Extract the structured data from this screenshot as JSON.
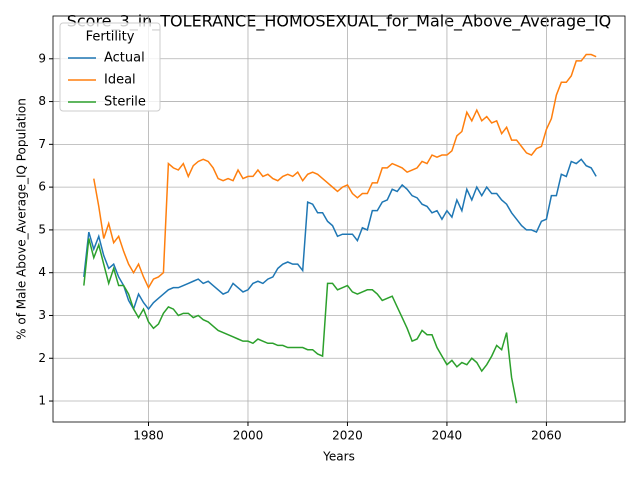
{
  "chart_data": {
    "type": "line",
    "title": "Score_3_in_TOLERANCE_HOMOSEXUAL_for_Male_Above_Average_IQ",
    "x_label": "Years",
    "y_label": "% of Male Above_Average_IQ Population",
    "legend_title": "Fertility",
    "legend_loc": "upper left",
    "grid": true,
    "x": [
      1967,
      1968,
      1969,
      1970,
      1971,
      1972,
      1973,
      1974,
      1975,
      1976,
      1977,
      1978,
      1979,
      1980,
      1981,
      1982,
      1983,
      1984,
      1985,
      1986,
      1987,
      1988,
      1989,
      1990,
      1991,
      1992,
      1993,
      1994,
      1995,
      1996,
      1997,
      1998,
      1999,
      2000,
      2001,
      2002,
      2003,
      2004,
      2005,
      2006,
      2007,
      2008,
      2009,
      2010,
      2011,
      2012,
      2013,
      2014,
      2015,
      2016,
      2017,
      2018,
      2019,
      2020,
      2021,
      2022,
      2023,
      2024,
      2025,
      2026,
      2027,
      2028,
      2029,
      2030,
      2031,
      2032,
      2033,
      2034,
      2035,
      2036,
      2037,
      2038,
      2039,
      2040,
      2041,
      2042,
      2043,
      2044,
      2045,
      2046,
      2047,
      2048,
      2049,
      2050,
      2051,
      2052,
      2053,
      2054,
      2055,
      2056,
      2057,
      2058,
      2059,
      2060,
      2061,
      2062,
      2063,
      2064,
      2065,
      2066,
      2067,
      2068,
      2069,
      2070
    ],
    "series": [
      {
        "name": "Actual",
        "color": "#1f77b4",
        "values": [
          3.9,
          4.95,
          4.55,
          4.85,
          4.4,
          4.1,
          4.2,
          3.9,
          3.7,
          3.35,
          3.15,
          3.5,
          3.3,
          3.15,
          3.3,
          3.4,
          3.5,
          3.6,
          3.65,
          3.65,
          3.7,
          3.75,
          3.8,
          3.85,
          3.75,
          3.8,
          3.7,
          3.6,
          3.5,
          3.55,
          3.75,
          3.65,
          3.55,
          3.6,
          3.75,
          3.8,
          3.75,
          3.85,
          3.9,
          4.1,
          4.2,
          4.25,
          4.2,
          4.2,
          4.05,
          5.65,
          5.6,
          5.4,
          5.4,
          5.2,
          5.1,
          4.85,
          4.9,
          4.9,
          4.9,
          4.75,
          5.05,
          5.0,
          5.45,
          5.45,
          5.65,
          5.7,
          5.95,
          5.9,
          6.05,
          5.95,
          5.8,
          5.75,
          5.6,
          5.55,
          5.4,
          5.45,
          5.25,
          5.45,
          5.3,
          5.7,
          5.45,
          5.95,
          5.7,
          6.0,
          5.8,
          6.0,
          5.85,
          5.85,
          5.7,
          5.6,
          5.4,
          5.25,
          5.1,
          5.0,
          5.0,
          4.95,
          5.2,
          5.25,
          5.8,
          5.8,
          6.3,
          6.25,
          6.6,
          6.55,
          6.65,
          6.5,
          6.45,
          6.25
        ]
      },
      {
        "name": "Ideal",
        "color": "#ff7f0e",
        "values": [
          null,
          null,
          6.2,
          5.55,
          4.8,
          5.15,
          4.7,
          4.85,
          4.5,
          4.2,
          4.0,
          4.2,
          3.9,
          3.65,
          3.85,
          3.9,
          4.0,
          6.55,
          6.45,
          6.4,
          6.55,
          6.25,
          6.5,
          6.6,
          6.65,
          6.6,
          6.45,
          6.2,
          6.15,
          6.2,
          6.15,
          6.4,
          6.2,
          6.25,
          6.25,
          6.4,
          6.25,
          6.3,
          6.2,
          6.15,
          6.25,
          6.3,
          6.25,
          6.35,
          6.15,
          6.3,
          6.35,
          6.3,
          6.2,
          6.1,
          6.0,
          5.9,
          6.0,
          6.05,
          5.85,
          5.75,
          5.85,
          5.85,
          6.1,
          6.1,
          6.45,
          6.45,
          6.55,
          6.5,
          6.45,
          6.35,
          6.4,
          6.45,
          6.6,
          6.55,
          6.75,
          6.7,
          6.75,
          6.75,
          6.85,
          7.2,
          7.3,
          7.75,
          7.55,
          7.8,
          7.55,
          7.65,
          7.5,
          7.55,
          7.25,
          7.4,
          7.1,
          7.1,
          6.95,
          6.8,
          6.75,
          6.9,
          6.95,
          7.35,
          7.6,
          8.15,
          8.45,
          8.45,
          8.6,
          8.95,
          8.95,
          9.1,
          9.1,
          9.05
        ]
      },
      {
        "name": "Sterile",
        "color": "#2ca02c",
        "values": [
          3.7,
          4.8,
          4.35,
          4.65,
          4.2,
          3.75,
          4.1,
          3.7,
          3.7,
          3.5,
          3.15,
          2.95,
          3.15,
          2.85,
          2.7,
          2.8,
          3.05,
          3.2,
          3.15,
          3.0,
          3.05,
          3.05,
          2.95,
          3.0,
          2.9,
          2.85,
          2.75,
          2.65,
          2.6,
          2.55,
          2.5,
          2.45,
          2.4,
          2.4,
          2.35,
          2.45,
          2.4,
          2.35,
          2.35,
          2.3,
          2.3,
          2.25,
          2.25,
          2.25,
          2.25,
          2.2,
          2.2,
          2.1,
          2.05,
          3.75,
          3.75,
          3.6,
          3.65,
          3.7,
          3.55,
          3.5,
          3.55,
          3.6,
          3.6,
          3.5,
          3.35,
          3.4,
          3.45,
          3.2,
          2.95,
          2.7,
          2.4,
          2.45,
          2.65,
          2.55,
          2.55,
          2.25,
          2.05,
          1.85,
          1.95,
          1.8,
          1.9,
          1.85,
          2.0,
          1.9,
          1.7,
          1.85,
          2.05,
          2.3,
          2.2,
          2.6,
          1.55,
          0.95,
          null,
          null,
          null,
          null,
          null,
          null,
          null,
          null,
          null,
          null,
          null,
          null,
          null,
          null,
          null,
          null
        ]
      }
    ],
    "xlim": [
      1960.8,
      2075.8
    ],
    "xticks": [
      1980,
      2000,
      2020,
      2040,
      2060
    ],
    "ylim": [
      0.51,
      10.0
    ],
    "yticks": [
      1,
      2,
      3,
      4,
      5,
      6,
      7,
      8,
      9
    ]
  }
}
